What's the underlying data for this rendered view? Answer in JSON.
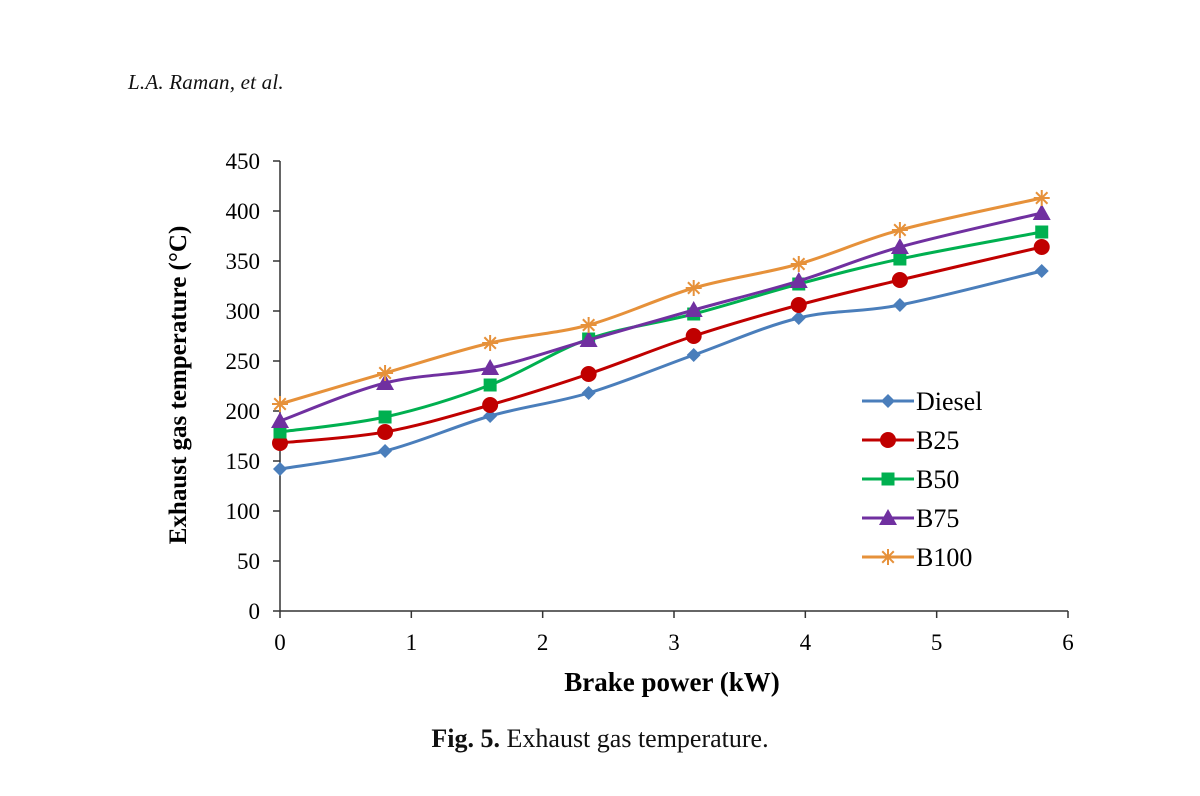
{
  "header": {
    "authors": "L.A. Raman, et al."
  },
  "caption": {
    "label": "Fig. 5.",
    "text": "Exhaust gas temperature."
  },
  "chart_data": {
    "type": "line",
    "title": "",
    "xlabel": "Brake power (kW)",
    "ylabel": "Exhaust gas temperature (°C)",
    "xlim": [
      0,
      6
    ],
    "ylim": [
      0,
      450
    ],
    "xticks": [
      0,
      1,
      2,
      3,
      4,
      5,
      6
    ],
    "yticks": [
      0,
      50,
      100,
      150,
      200,
      250,
      300,
      350,
      400,
      450
    ],
    "grid": false,
    "legend_position": "right",
    "x": [
      0,
      0.8,
      1.6,
      2.35,
      3.15,
      3.95,
      4.72,
      5.8
    ],
    "series": [
      {
        "name": "Diesel",
        "color": "#4a7ebb",
        "marker": "diamond",
        "values": [
          142,
          160,
          195,
          218,
          256,
          293,
          306,
          340
        ]
      },
      {
        "name": "B25",
        "color": "#c00000",
        "marker": "circle",
        "values": [
          168,
          179,
          206,
          237,
          275,
          306,
          331,
          364
        ]
      },
      {
        "name": "B50",
        "color": "#00b050",
        "marker": "square",
        "values": [
          179,
          194,
          226,
          272,
          297,
          327,
          352,
          379
        ]
      },
      {
        "name": "B75",
        "color": "#7030a0",
        "marker": "triangle",
        "values": [
          190,
          228,
          243,
          271,
          301,
          330,
          364,
          398
        ]
      },
      {
        "name": "B100",
        "color": "#e6913a",
        "marker": "star",
        "values": [
          207,
          238,
          268,
          286,
          323,
          347,
          381,
          413
        ]
      }
    ]
  }
}
